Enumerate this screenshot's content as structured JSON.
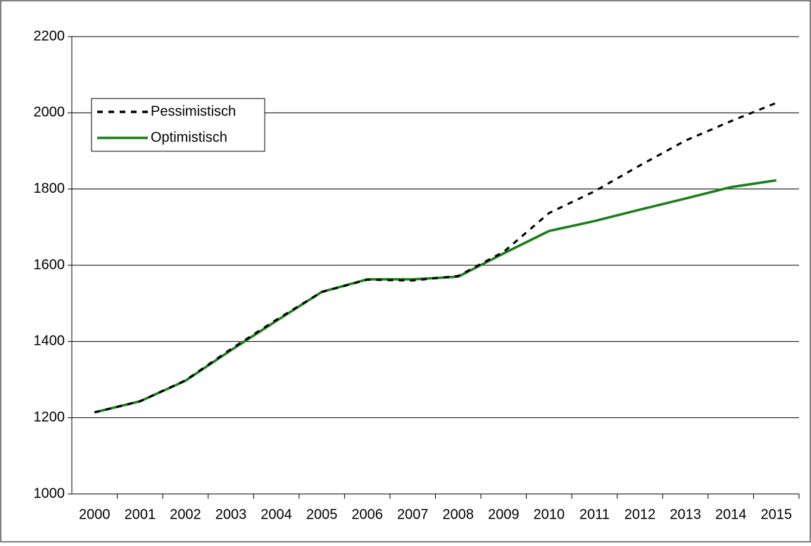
{
  "chart_data": {
    "type": "line",
    "categories": [
      "2000",
      "2001",
      "2002",
      "2003",
      "2004",
      "2005",
      "2006",
      "2007",
      "2008",
      "2009",
      "2010",
      "2011",
      "2012",
      "2013",
      "2014",
      "2015"
    ],
    "series": [
      {
        "name": "Pessimistisch",
        "color": "#000000",
        "dash": true,
        "values": [
          1214,
          1243,
          1298,
          1380,
          1457,
          1530,
          1562,
          1560,
          1572,
          1635,
          1737,
          1794,
          1862,
          1927,
          1978,
          2026
        ]
      },
      {
        "name": "Optimistisch",
        "color": "#1a7f1a",
        "dash": false,
        "values": [
          1214,
          1243,
          1297,
          1377,
          1454,
          1530,
          1563,
          1563,
          1570,
          1631,
          1690,
          1716,
          1746,
          1775,
          1805,
          1823
        ]
      }
    ],
    "ylim": [
      1000,
      2200
    ],
    "yticks": [
      1000,
      1200,
      1400,
      1600,
      1800,
      2000,
      2200
    ],
    "grid": true,
    "legend": "top-left"
  }
}
